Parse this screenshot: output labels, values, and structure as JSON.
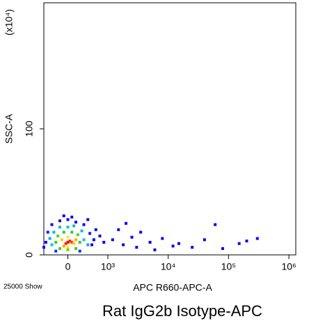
{
  "chart_data": {
    "type": "scatter",
    "title": "Rat IgG2b Isotype-APC",
    "xlabel": "APC R660-APC-A",
    "ylabel": "SSC-A",
    "y_multiplier": "(x10⁴)",
    "event_note": "25000 Show",
    "xscale": "biexponential",
    "xlim": [
      -600,
      1300000
    ],
    "ylim": [
      0,
      200
    ],
    "xticks": [
      0,
      {
        "value": 1000,
        "label": "10³"
      },
      {
        "value": 10000,
        "label": "10⁴"
      },
      {
        "value": 100000,
        "label": "10⁵"
      },
      {
        "value": 1000000,
        "label": "10⁶"
      }
    ],
    "yticks": [
      0,
      100
    ],
    "series": [
      {
        "x": [
          0,
          50,
          -50,
          100,
          -150,
          150,
          0,
          0,
          200,
          -100,
          -300,
          300,
          -250,
          250,
          100,
          -100,
          0,
          200,
          -200,
          -400,
          400,
          -350,
          350,
          0,
          150,
          -200,
          500,
          -450,
          -550,
          -500,
          -400,
          -200,
          0,
          200,
          400,
          550,
          600,
          650,
          700,
          800,
          900,
          -300,
          300,
          -600,
          500,
          100,
          -100,
          1200,
          1500,
          1800,
          2000,
          2500,
          3000,
          3500,
          5000,
          6000,
          8000,
          12000,
          15000,
          25000,
          40000,
          60000,
          80000,
          150000,
          200000,
          300000
        ],
        "values": [
          10,
          11,
          9,
          10,
          12,
          9,
          14,
          6,
          12,
          7,
          10,
          10,
          15,
          16,
          18,
          18,
          4,
          5,
          5,
          8,
          12,
          18,
          19,
          22,
          23,
          22,
          8,
          13,
          10,
          18,
          24,
          27,
          28,
          26,
          24,
          17,
          8,
          12,
          20,
          15,
          10,
          3,
          3,
          6,
          28,
          30,
          31,
          12,
          20,
          8,
          25,
          14,
          6,
          18,
          10,
          4,
          13,
          7,
          9,
          6,
          12,
          24,
          5,
          9,
          11,
          13
        ],
        "colors": [
          "#ff0000",
          "#ff2000",
          "#ff2000",
          "#ff4000",
          "#ffcc00",
          "#ffcc00",
          "#ffee00",
          "#ffee00",
          "#ffaa00",
          "#ffaa00",
          "#33cc33",
          "#33cc33",
          "#44dd22",
          "#44dd22",
          "#22cc44",
          "#22cc44",
          "#66dd00",
          "#44cc33",
          "#44cc33",
          "#00cccc",
          "#00cccc",
          "#00bbdd",
          "#00bbdd",
          "#00ccbb",
          "#00bbdd",
          "#00bbdd",
          "#00aaee",
          "#00aaee",
          "#0000ff",
          "#0022ff",
          "#0000ff",
          "#0000ee",
          "#0000ff",
          "#0011ff",
          "#0000ff",
          "#0022ff",
          "#0000ff",
          "#0000ee",
          "#0000ff",
          "#0000ff",
          "#0000ee",
          "#0033ff",
          "#0033ff",
          "#0000ff",
          "#0000ee",
          "#0000ff",
          "#0000ff",
          "#0000ff",
          "#0000ff",
          "#0000ee",
          "#0000ff",
          "#0000ff",
          "#0000ee",
          "#0000ff",
          "#0000ff",
          "#0000ee",
          "#0000ff",
          "#0000ff",
          "#0000ee",
          "#0000ff",
          "#0000ff",
          "#0000ee",
          "#0000ff",
          "#0000ff",
          "#0000ee",
          "#0000ff"
        ]
      }
    ]
  }
}
